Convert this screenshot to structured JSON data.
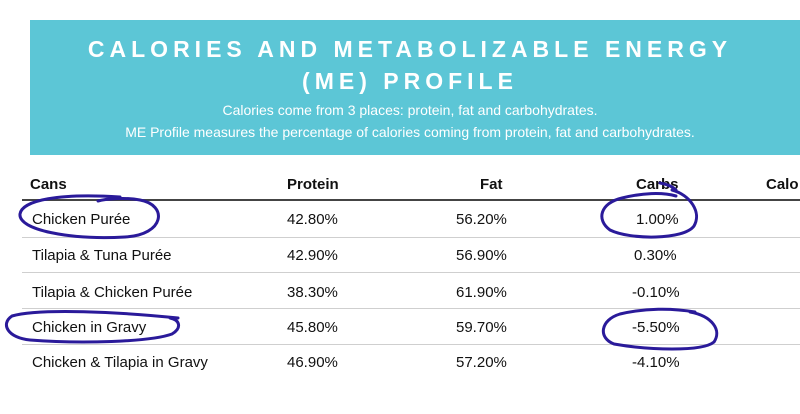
{
  "banner": {
    "title_line1": "CALORIES AND METABOLIZABLE ENERGY",
    "title_line2": "(ME) PROFILE",
    "subtitle_line1": "Calories come from 3 places: protein, fat and carbohydrates.",
    "subtitle_line2": "ME Profile measures the percentage of calories coming from protein, fat and carbohydrates."
  },
  "table": {
    "headers": [
      "Cans",
      "Protein",
      "Fat",
      "Carbs",
      "Calo"
    ],
    "rows": [
      {
        "name": "Chicken Purée",
        "protein": "42.80%",
        "fat": "56.20%",
        "carbs": "1.00%"
      },
      {
        "name": "Tilapia & Tuna Purée",
        "protein": "42.90%",
        "fat": "56.90%",
        "carbs": "0.30%"
      },
      {
        "name": "Tilapia & Chicken Purée",
        "protein": "38.30%",
        "fat": "61.90%",
        "carbs": "-0.10%"
      },
      {
        "name": "Chicken in Gravy",
        "protein": "45.80%",
        "fat": "59.70%",
        "carbs": "-5.50%"
      },
      {
        "name": "Chicken & Tilapia in Gravy",
        "protein": "46.90%",
        "fat": "57.20%",
        "carbs": "-4.10%"
      }
    ]
  },
  "colors": {
    "banner": "#5cc6d6",
    "ink": "#2a1a9a"
  }
}
